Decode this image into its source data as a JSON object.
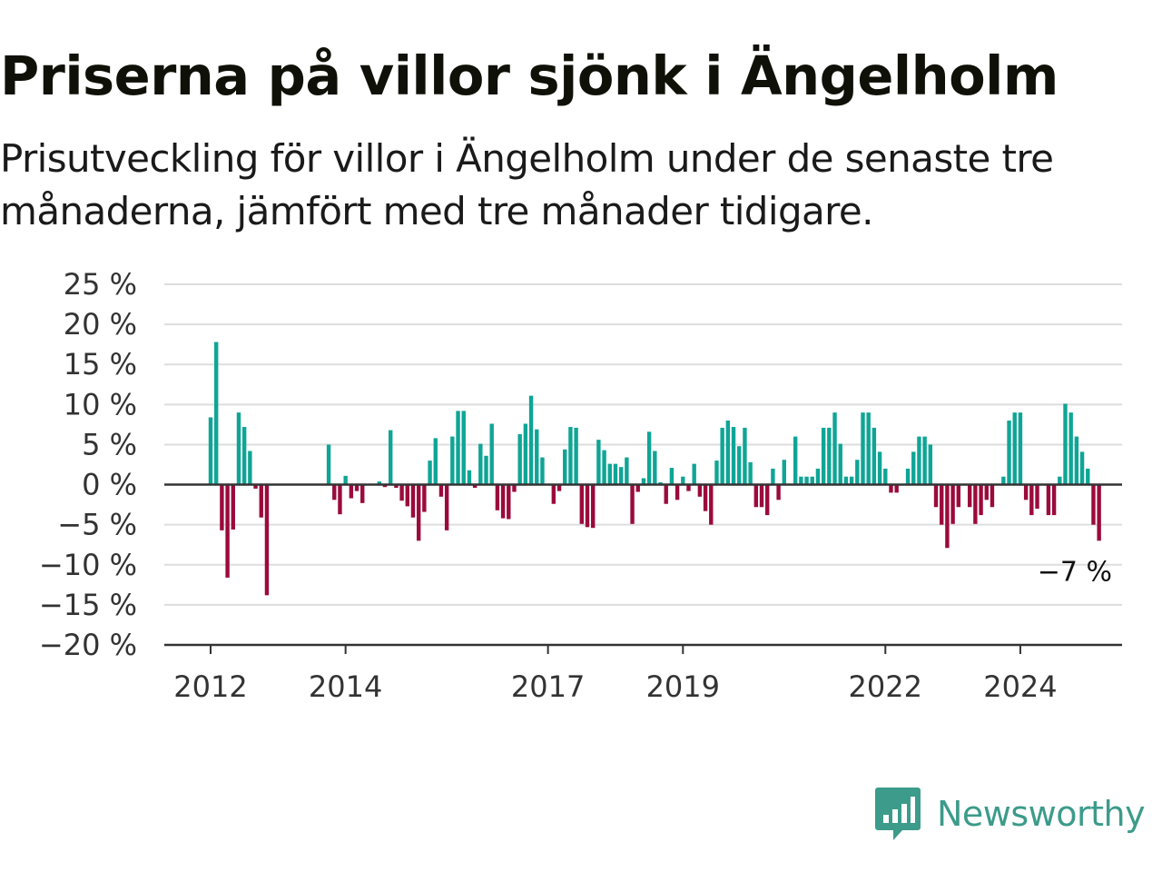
{
  "header": {
    "title": "Priserna på villor sjönk i Ängelholm",
    "subtitle": "Prisutveckling för villor i Ängelholm under de senaste tre månaderna, jämfört med tre månader tidigare."
  },
  "brand": {
    "name": "Newsworthy",
    "icon": "newsworthy-logo-icon",
    "color": "#3c9b8a"
  },
  "chart_data": {
    "type": "bar",
    "title": "",
    "xlabel": "",
    "ylabel": "",
    "ylim": [
      -20,
      25
    ],
    "y_ticks": [
      25,
      20,
      15,
      10,
      5,
      0,
      -5,
      -10,
      -15,
      -20
    ],
    "y_tick_labels": [
      "25 %",
      "20 %",
      "15 %",
      "10 %",
      "5 %",
      "0 %",
      "−5 %",
      "−10 %",
      "−15 %",
      "−20 %"
    ],
    "x_ticks": [
      "2012",
      "2014",
      "2017",
      "2019",
      "2022",
      "2024"
    ],
    "x_tick_dates": [
      "2012-01",
      "2014-01",
      "2017-01",
      "2019-01",
      "2022-01",
      "2024-01"
    ],
    "grid": true,
    "legend": "none",
    "colors": {
      "positive": "#0fa596",
      "negative": "#9b0a3c",
      "axis": "#333333",
      "grid": "#dddddd"
    },
    "last_value_label": "−7 %",
    "x_start": "2012-01",
    "values": [
      8.4,
      17.8,
      -5.7,
      -11.6,
      -5.6,
      9.0,
      7.2,
      4.2,
      -0.5,
      -4.1,
      -13.8,
      null,
      null,
      null,
      null,
      null,
      null,
      null,
      null,
      null,
      null,
      5.0,
      -1.9,
      -3.7,
      1.1,
      -1.7,
      -0.8,
      -2.3,
      null,
      null,
      0.4,
      -0.3,
      6.8,
      -0.4,
      -2.0,
      -2.7,
      -4.1,
      -7.0,
      -3.4,
      3.0,
      5.8,
      -1.5,
      -5.7,
      6.0,
      9.2,
      9.2,
      1.8,
      -0.4,
      5.1,
      3.6,
      7.6,
      -3.2,
      -4.2,
      -4.3,
      -0.9,
      6.3,
      7.6,
      11.1,
      6.9,
      3.4,
      null,
      -2.4,
      -0.8,
      4.4,
      7.2,
      7.1,
      -4.9,
      -5.3,
      -5.4,
      5.6,
      4.3,
      2.6,
      2.6,
      2.2,
      3.4,
      -4.9,
      -0.9,
      0.8,
      6.6,
      4.2,
      0.3,
      -2.4,
      2.1,
      -1.9,
      1.0,
      -0.8,
      2.6,
      -1.5,
      -3.3,
      -5.0,
      3.0,
      7.1,
      8.0,
      7.2,
      4.8,
      7.1,
      2.8,
      -2.8,
      -2.8,
      -3.8,
      2.0,
      -1.9,
      3.1,
      null,
      6.0,
      1.0,
      1.0,
      1.0,
      2.0,
      7.1,
      7.1,
      9.0,
      5.1,
      1.0,
      1.0,
      3.1,
      9.0,
      9.0,
      7.1,
      4.1,
      2.0,
      -1.0,
      -1.0,
      null,
      2.0,
      4.1,
      6.0,
      6.0,
      5.0,
      -2.8,
      -5.0,
      -7.9,
      -4.9,
      -2.8,
      null,
      -2.8,
      -4.9,
      -3.8,
      -1.9,
      -2.8,
      null,
      1.0,
      8.0,
      9.0,
      9.0,
      -1.9,
      -3.8,
      -3.0,
      null,
      -3.8,
      -3.8,
      1.0,
      10.1,
      9.0,
      6.0,
      4.1,
      2.0,
      -5.0,
      -7.0
    ]
  }
}
